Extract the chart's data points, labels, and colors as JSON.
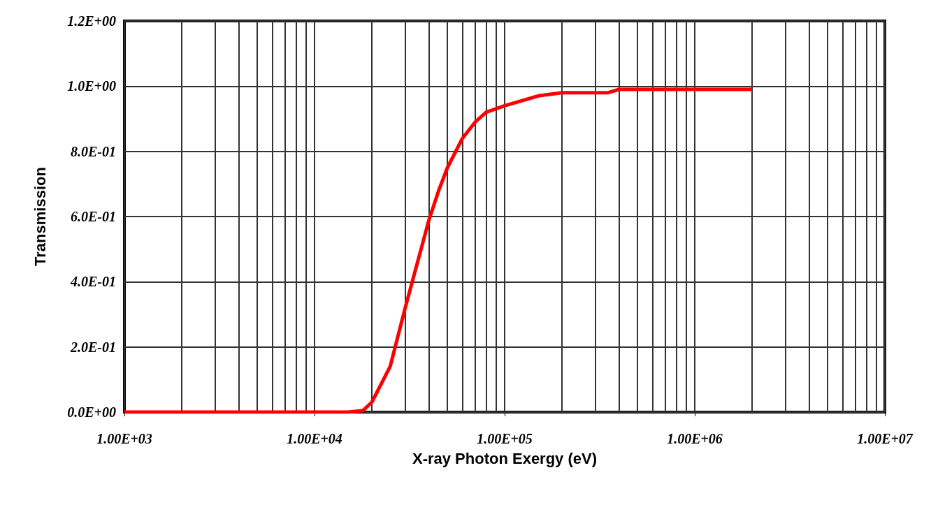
{
  "chart_data": {
    "type": "line",
    "xlabel": "X-ray Photon Exergy (eV)",
    "ylabel": "Transmission",
    "log": "x",
    "grid": true,
    "marker": "none",
    "line_style": "solid",
    "xlim": [
      1000,
      10000000
    ],
    "ylim": [
      0,
      1.2
    ],
    "xticks": [
      {
        "value": 1000,
        "label": "1.00E+03"
      },
      {
        "value": 2000,
        "label": null
      },
      {
        "value": 3000,
        "label": null
      },
      {
        "value": 4000,
        "label": null
      },
      {
        "value": 5000,
        "label": null
      },
      {
        "value": 6000,
        "label": null
      },
      {
        "value": 7000,
        "label": null
      },
      {
        "value": 8000,
        "label": null
      },
      {
        "value": 9000,
        "label": null
      },
      {
        "value": 10000,
        "label": "1.00E+04"
      },
      {
        "value": 20000,
        "label": null
      },
      {
        "value": 30000,
        "label": null
      },
      {
        "value": 40000,
        "label": null
      },
      {
        "value": 50000,
        "label": null
      },
      {
        "value": 60000,
        "label": null
      },
      {
        "value": 70000,
        "label": null
      },
      {
        "value": 80000,
        "label": null
      },
      {
        "value": 90000,
        "label": null
      },
      {
        "value": 100000,
        "label": "1.00E+05"
      },
      {
        "value": 200000,
        "label": null
      },
      {
        "value": 300000,
        "label": null
      },
      {
        "value": 400000,
        "label": null
      },
      {
        "value": 500000,
        "label": null
      },
      {
        "value": 600000,
        "label": null
      },
      {
        "value": 700000,
        "label": null
      },
      {
        "value": 800000,
        "label": null
      },
      {
        "value": 900000,
        "label": null
      },
      {
        "value": 1000000,
        "label": "1.00E+06"
      },
      {
        "value": 2000000,
        "label": null
      },
      {
        "value": 3000000,
        "label": null
      },
      {
        "value": 4000000,
        "label": null
      },
      {
        "value": 5000000,
        "label": null
      },
      {
        "value": 6000000,
        "label": null
      },
      {
        "value": 7000000,
        "label": null
      },
      {
        "value": 8000000,
        "label": null
      },
      {
        "value": 9000000,
        "label": null
      },
      {
        "value": 10000000,
        "label": "1.00E+07"
      }
    ],
    "yticks": [
      {
        "value": 0,
        "label": "0.0E+00"
      },
      {
        "value": 0.2,
        "label": "2.0E-01"
      },
      {
        "value": 0.4,
        "label": "4.0E-01"
      },
      {
        "value": 0.6,
        "label": "6.0E-01"
      },
      {
        "value": 0.8,
        "label": "8.0E-01"
      },
      {
        "value": 1.0,
        "label": "1.0E+00"
      },
      {
        "value": 1.2,
        "label": "1.2E+00"
      }
    ],
    "series": [
      {
        "color": "#ff0000",
        "x": [
          1000,
          2000,
          5000,
          10000,
          15000,
          18000,
          20000,
          25000,
          30000,
          40000,
          45000,
          50000,
          60000,
          70000,
          80000,
          100000,
          150000,
          200000,
          350000,
          400000,
          1000000,
          1100000,
          2000000
        ],
        "values": [
          0,
          0,
          0,
          0,
          0,
          0.005,
          0.03,
          0.14,
          0.32,
          0.59,
          0.68,
          0.75,
          0.84,
          0.89,
          0.92,
          0.94,
          0.97,
          0.98,
          0.98,
          0.99,
          0.99,
          0.99,
          0.99
        ]
      }
    ]
  }
}
